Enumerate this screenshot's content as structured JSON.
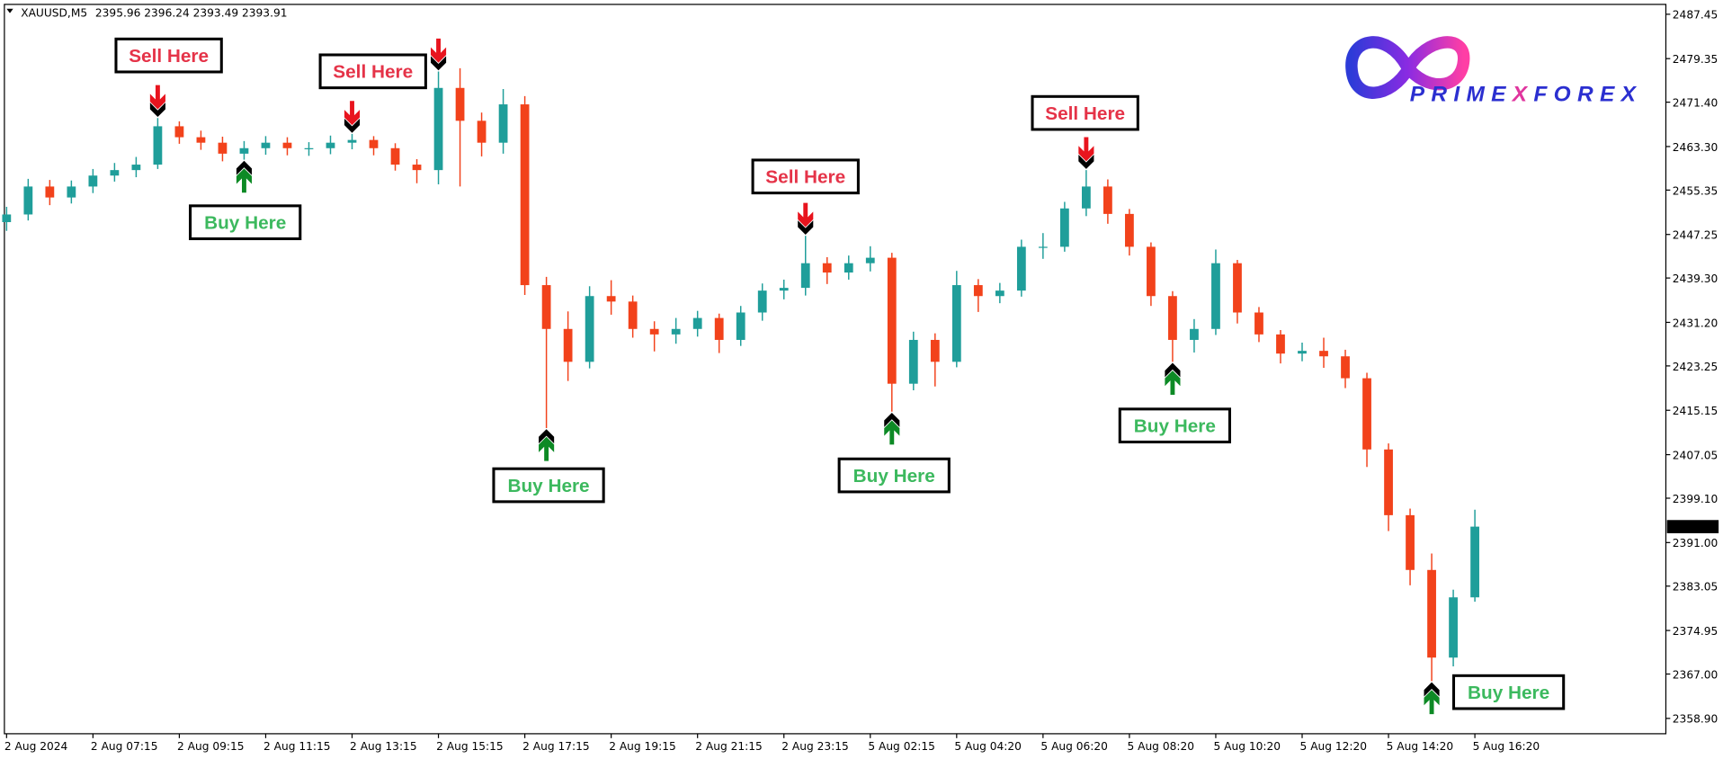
{
  "chart_data": {
    "type": "candlestick",
    "header": {
      "symbol": "XAUUSD,M5",
      "open": 2395.96,
      "high": 2396.24,
      "low": 2393.49,
      "close": 2393.91
    },
    "categories": [
      "2 Aug 2024",
      null,
      null,
      null,
      "2 Aug 07:15",
      null,
      null,
      null,
      "2 Aug 09:15",
      null,
      null,
      null,
      "2 Aug 11:15",
      null,
      null,
      null,
      "2 Aug 13:15",
      null,
      null,
      null,
      "2 Aug 15:15",
      null,
      null,
      null,
      "2 Aug 17:15",
      null,
      null,
      null,
      "2 Aug 19:15",
      null,
      null,
      null,
      "2 Aug 21:15",
      null,
      null,
      null,
      "2 Aug 23:15",
      null,
      null,
      null,
      "5 Aug 02:15",
      null,
      null,
      null,
      "5 Aug 04:20",
      null,
      null,
      null,
      "5 Aug 06:20",
      null,
      null,
      null,
      "5 Aug 08:20",
      null,
      null,
      null,
      "5 Aug 10:20",
      null,
      null,
      null,
      "5 Aug 12:20",
      null,
      null,
      null,
      "5 Aug 14:20",
      null,
      null,
      null,
      "5 Aug 16:20"
    ],
    "open": [
      2449.5,
      2450.9,
      2456,
      2454,
      2456,
      2458,
      2459,
      2460,
      2467,
      2465,
      2464,
      2462,
      2463,
      2464,
      2463,
      2463,
      2464,
      2464.5,
      2463,
      2460,
      2459,
      2474,
      2468,
      2464,
      2471,
      2438,
      2430,
      2424,
      2436,
      2435,
      2430,
      2429,
      2430,
      2432,
      2428,
      2433,
      2437,
      2437.5,
      2442,
      2440.3,
      2442,
      2443,
      2420,
      2428,
      2424,
      2438,
      2436,
      2437,
      2445,
      2445,
      2452,
      2456,
      2451,
      2445,
      2436,
      2428,
      2430,
      2442,
      2433,
      2429,
      2425.5,
      2426,
      2425,
      2421,
      2408,
      2396,
      2386,
      2370,
      2381
    ],
    "high": [
      2452.3,
      2457.4,
      2457.2,
      2457.1,
      2459.2,
      2460.3,
      2461.4,
      2468.5,
      2467.9,
      2466.2,
      2465.1,
      2464.3,
      2465.2,
      2465.0,
      2464.1,
      2465.3,
      2465.6,
      2465.2,
      2463.9,
      2461.0,
      2477.0,
      2477.6,
      2469.5,
      2473.8,
      2472.5,
      2439.5,
      2433.2,
      2437.8,
      2438.9,
      2436.1,
      2431.4,
      2432.0,
      2433.3,
      2432.8,
      2434.2,
      2438.3,
      2439.0,
      2447.0,
      2443.1,
      2443.4,
      2445.1,
      2443.9,
      2429.5,
      2429.2,
      2440.6,
      2439.1,
      2438.4,
      2446.3,
      2447.5,
      2453.2,
      2459.0,
      2457.3,
      2451.9,
      2445.8,
      2436.9,
      2431.8,
      2444.5,
      2442.6,
      2434.0,
      2429.8,
      2427.5,
      2428.4,
      2426.2,
      2422.0,
      2409.1,
      2397.2,
      2389.0,
      2382.4,
      2397.0
    ],
    "low": [
      2447.9,
      2449.8,
      2452.6,
      2452.9,
      2454.8,
      2456.9,
      2457.7,
      2459.2,
      2463.8,
      2462.7,
      2460.6,
      2460.9,
      2461.8,
      2461.7,
      2461.6,
      2461.9,
      2462.8,
      2461.7,
      2458.9,
      2456.6,
      2456.4,
      2456.0,
      2461.5,
      2462.0,
      2436.2,
      2411.9,
      2420.5,
      2422.8,
      2432.6,
      2428.4,
      2425.9,
      2427.3,
      2428.6,
      2425.6,
      2426.9,
      2431.5,
      2435.4,
      2436.1,
      2438.2,
      2439.0,
      2440.5,
      2414.9,
      2418.8,
      2419.5,
      2423.0,
      2433.1,
      2434.7,
      2435.9,
      2442.8,
      2444.1,
      2450.6,
      2449.2,
      2443.4,
      2434.2,
      2424.0,
      2425.7,
      2428.9,
      2431.0,
      2427.6,
      2423.7,
      2424.1,
      2422.9,
      2419.2,
      2404.8,
      2393.1,
      2383.2,
      2365.7,
      2368.4,
      2380.2
    ],
    "close": [
      2450.9,
      2456,
      2454,
      2456,
      2458,
      2459,
      2460,
      2467,
      2465,
      2464,
      2462,
      2463,
      2464,
      2463,
      2463,
      2464,
      2464.5,
      2463,
      2460,
      2459,
      2474,
      2468,
      2464,
      2471,
      2438,
      2430,
      2424,
      2436,
      2435,
      2430,
      2429,
      2430,
      2432,
      2428,
      2433,
      2437,
      2437.5,
      2442,
      2440.3,
      2442,
      2443,
      2420,
      2428,
      2424,
      2438,
      2436,
      2437,
      2445,
      2445,
      2452,
      2456,
      2451,
      2445,
      2436,
      2428,
      2430,
      2442,
      2433,
      2429,
      2425.5,
      2426,
      2425,
      2421,
      2408,
      2396,
      2386,
      2370,
      2381,
      2393.91
    ],
    "up_color": "#1f9e9a",
    "down_color": "#f2421b",
    "ylim": [
      2356.1,
      2489.25
    ],
    "yticks": [
      2487.45,
      2479.35,
      {
        "value": 2471.4,
        "label": "2471.40"
      },
      {
        "value": 2463.3,
        "label": "2463.30"
      },
      2455.35,
      2447.25,
      {
        "value": 2439.3,
        "label": "2439.30"
      },
      {
        "value": 2431.2,
        "label": "2431.20"
      },
      2423.25,
      2415.15,
      2407.05,
      {
        "value": 2399.1,
        "label": "2399.10"
      },
      {
        "value": 2391,
        "label": "2391.00"
      },
      2383.05,
      2374.95,
      {
        "value": 2367,
        "label": "2367.00"
      },
      {
        "value": 2358.9,
        "label": "2358.90"
      }
    ],
    "grid": false,
    "signals": [
      {
        "label": "Sell Here"
      },
      {
        "label": "Buy Here"
      },
      {
        "label": "Sell Here"
      },
      {
        "label": "Buy Here"
      },
      {
        "label": "Sell Here"
      },
      {
        "label": "Buy Here"
      },
      {
        "label": "Sell Here"
      },
      {
        "label": "Buy Here"
      },
      {
        "label": "Buy Here"
      }
    ],
    "logo": [
      "PRIME",
      "X",
      "FOREX"
    ]
  }
}
